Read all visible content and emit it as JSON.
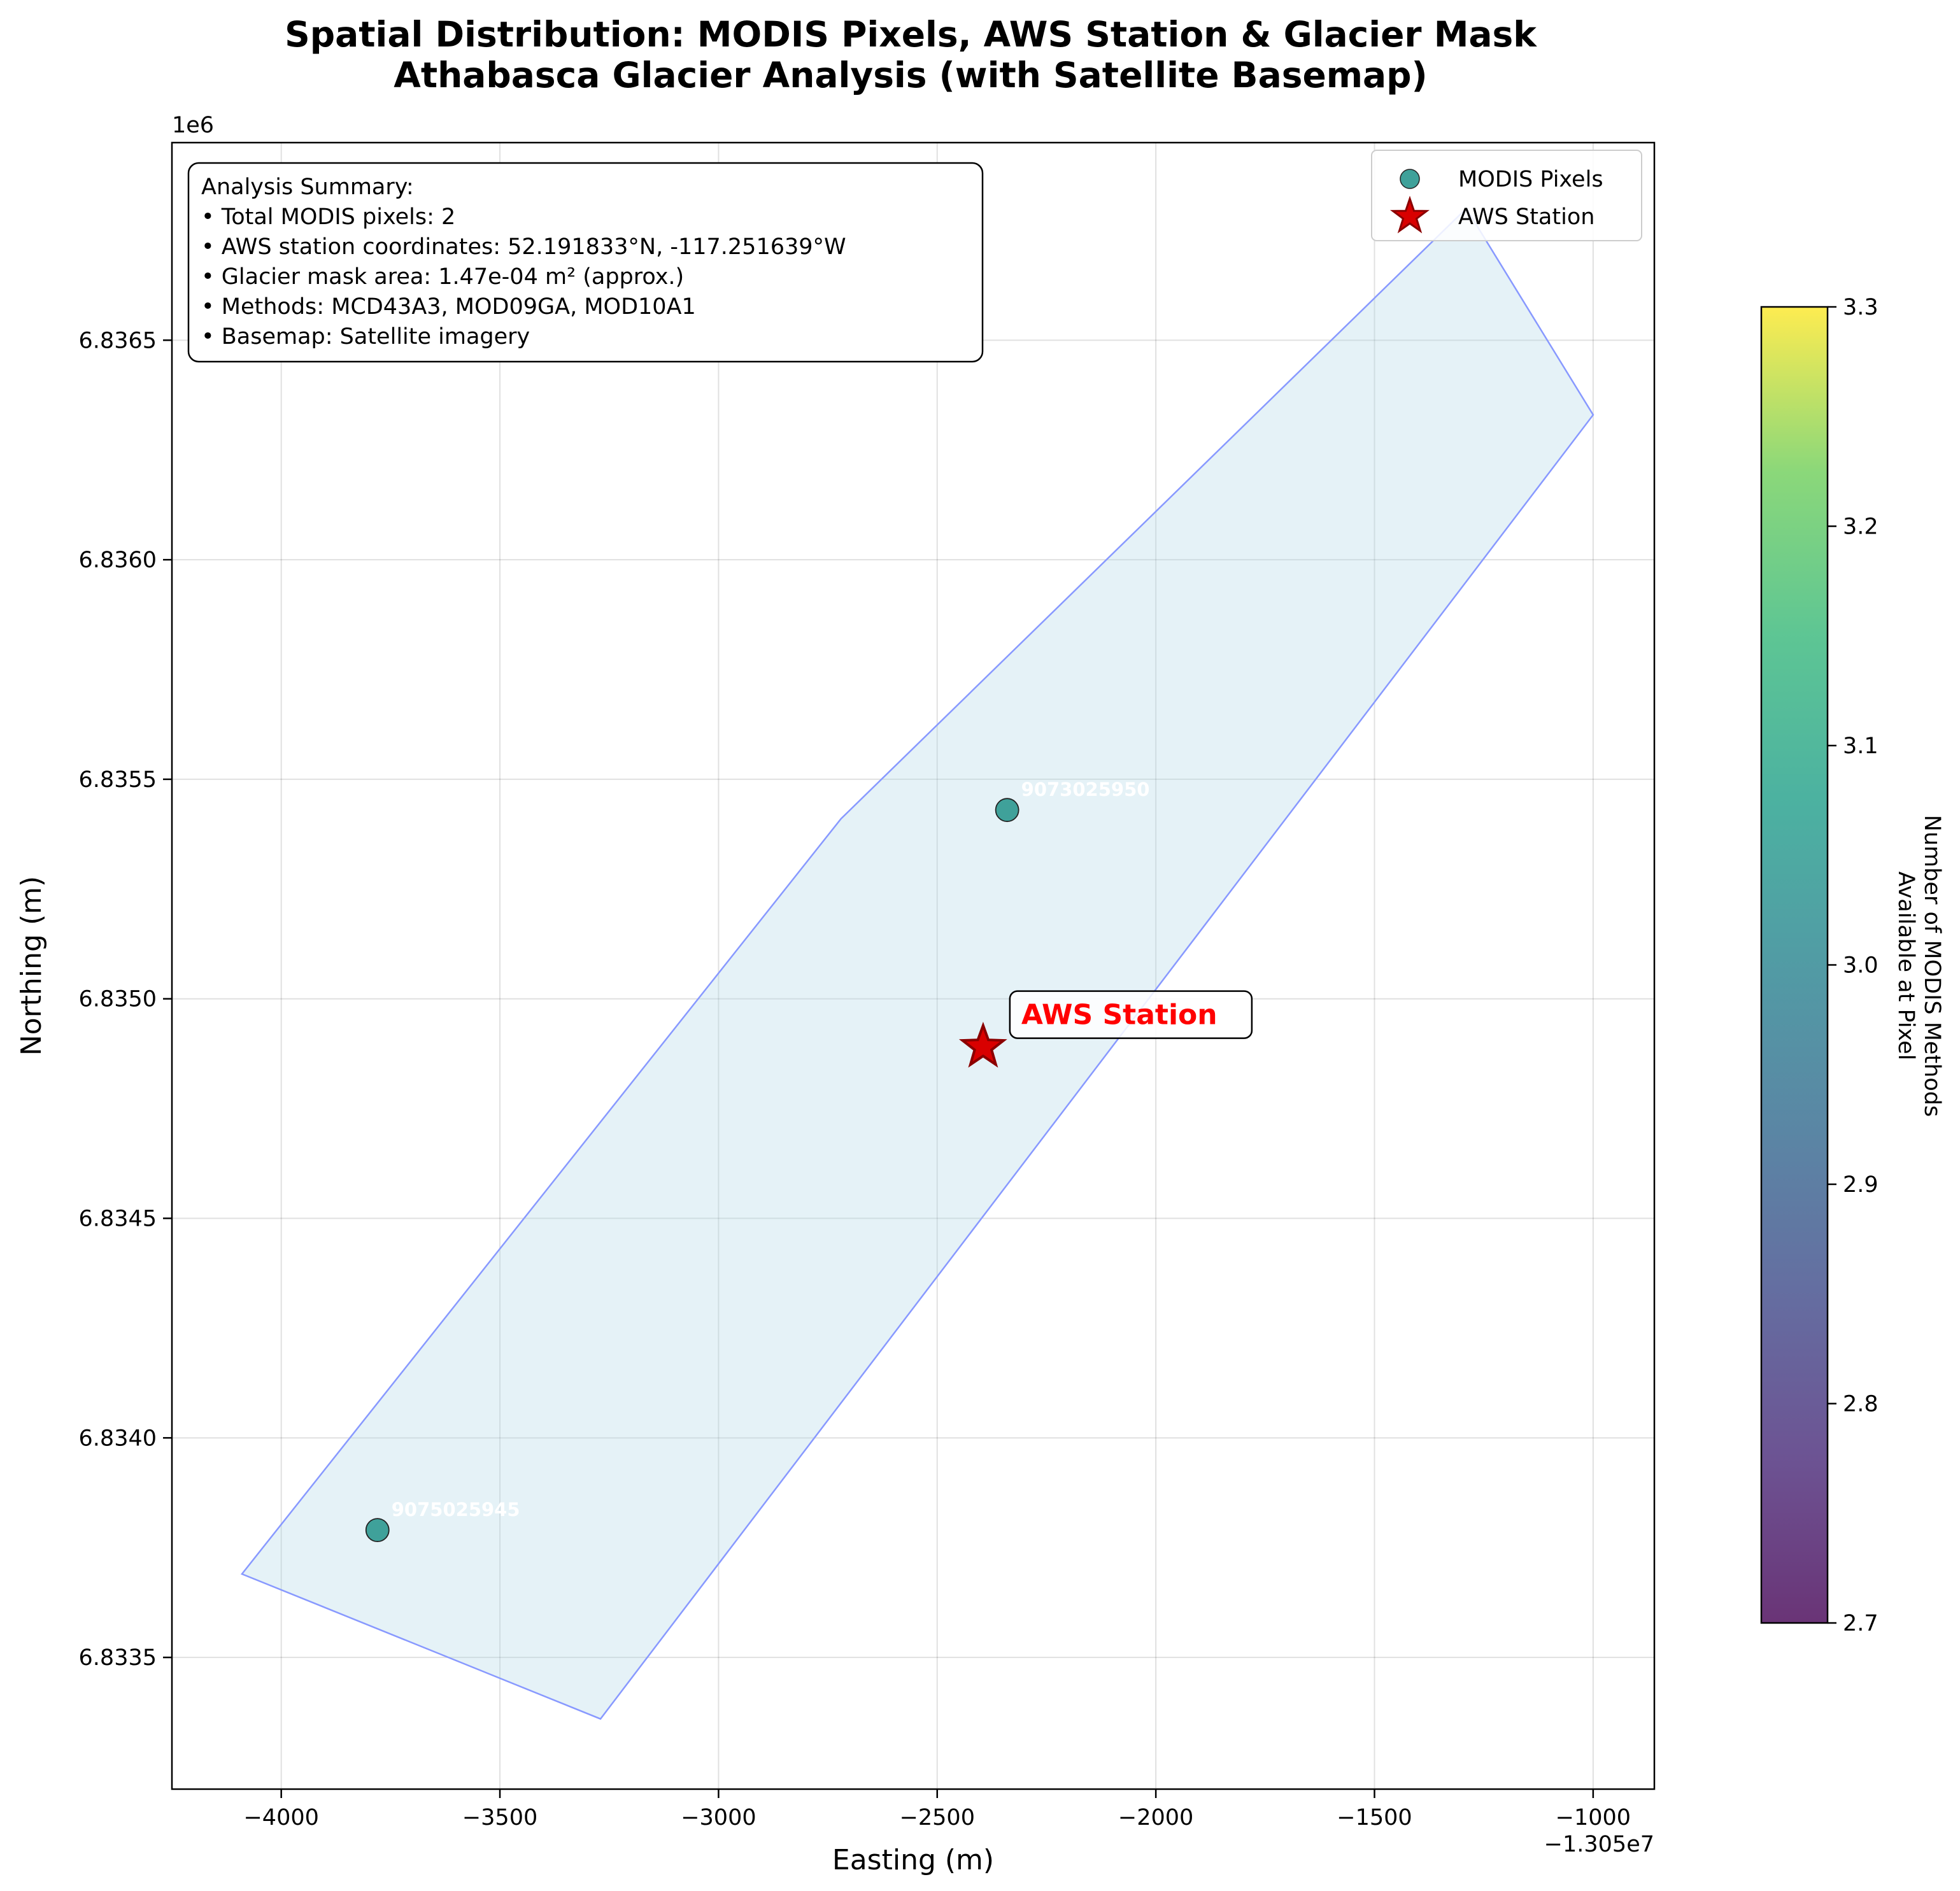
{
  "title_line1": "Spatial Distribution: MODIS Pixels, AWS Station & Glacier Mask",
  "title_line2": "Athabasca Glacier Analysis (with Satellite Basemap)",
  "summary": [
    "Analysis Summary:",
    "• Total MODIS pixels: 2",
    "• AWS station coordinates: 52.191833°N, -117.251639°W",
    "• Glacier mask area: 1.47e-04 m² (approx.)",
    "• Methods: MCD43A3, MOD09GA, MOD10A1",
    "• Basemap: Satellite imagery"
  ],
  "legend": {
    "modis": "MODIS Pixels",
    "aws": "AWS Station"
  },
  "colorbar": {
    "label_line1": "Number of MODIS Methods",
    "label_line2": "Available at Pixel",
    "range": [
      2.7,
      3.3
    ],
    "ticks": [
      "2.7",
      "2.8",
      "2.9",
      "3.0",
      "3.1",
      "3.2",
      "3.3"
    ],
    "colormap": "viridis"
  },
  "colors": {
    "modis_fill": "#3fa19a",
    "aws_fill": "#d90000",
    "aws_edge": "#8b0000",
    "aws_label": "#ff0000",
    "glacier_fill": "#add8e6",
    "glacier_edge": "#8899ff"
  },
  "chart_data": {
    "type": "scatter",
    "xlabel": "Easting (m)",
    "ylabel": "Northing (m)",
    "x_offset_label": "−1.305e7",
    "y_scale_label": "1e6",
    "xlim": [
      -4250,
      -860
    ],
    "ylim": [
      6.8332,
      6.83695
    ],
    "xticks": [
      -4000,
      -3500,
      -3000,
      -2500,
      -2000,
      -1500,
      -1000
    ],
    "xtick_labels": [
      "−4000",
      "−3500",
      "−3000",
      "−2500",
      "−2000",
      "−1500",
      "−1000"
    ],
    "yticks": [
      6.8335,
      6.834,
      6.8345,
      6.835,
      6.8355,
      6.836,
      6.8365
    ],
    "ytick_labels": [
      "6.8335",
      "6.8340",
      "6.8345",
      "6.8350",
      "6.8355",
      "6.8360",
      "6.8365"
    ],
    "grid": true,
    "legend_position": "upper right",
    "glacier_mask_polygon": [
      [
        -4090,
        6.83369
      ],
      [
        -2720,
        6.83541
      ],
      [
        -1290,
        6.8368
      ],
      [
        -1000,
        6.83633
      ],
      [
        -3270,
        6.83336
      ]
    ],
    "modis_pixels": [
      {
        "x": -2340,
        "y": 6.83543,
        "id": "9073025950",
        "methods": 3
      },
      {
        "x": -3780,
        "y": 6.83379,
        "id": "9075025945",
        "methods": 3
      }
    ],
    "aws_station": {
      "x": -2395,
      "y": 6.83489,
      "label": "AWS Station"
    }
  }
}
